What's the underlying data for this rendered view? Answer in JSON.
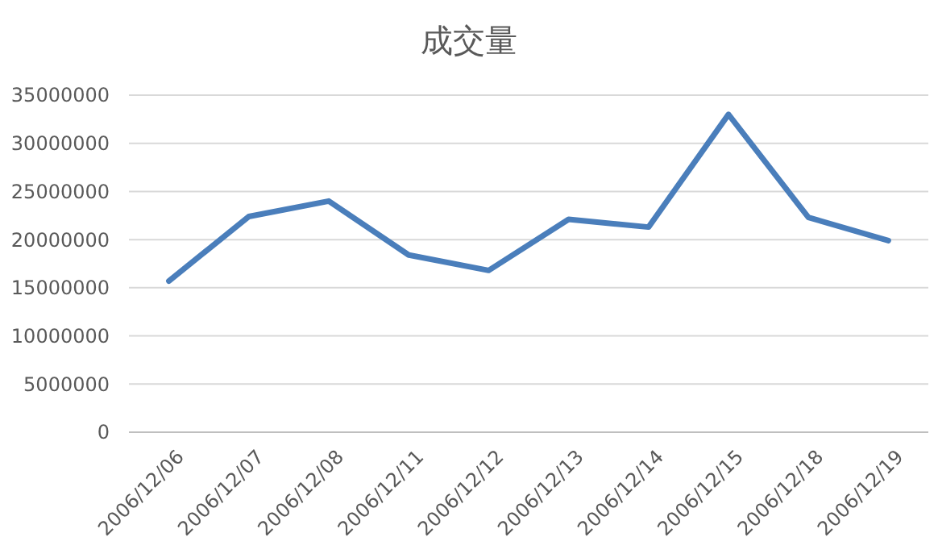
{
  "chart_data": {
    "type": "line",
    "title": "成交量",
    "categories": [
      "2006/12/06",
      "2006/12/07",
      "2006/12/08",
      "2006/12/11",
      "2006/12/12",
      "2006/12/13",
      "2006/12/14",
      "2006/12/15",
      "2006/12/18",
      "2006/12/19"
    ],
    "series": [
      {
        "color": "#4a7ebb",
        "values": [
          15700000,
          22400000,
          24000000,
          18400000,
          16800000,
          22100000,
          21300000,
          33000000,
          22300000,
          19900000
        ]
      }
    ],
    "ylim": [
      0,
      35000000
    ],
    "yticks": [
      0,
      5000000,
      10000000,
      15000000,
      20000000,
      25000000,
      30000000,
      35000000
    ],
    "grid": "y",
    "marker": "none",
    "line_style": "solid"
  }
}
